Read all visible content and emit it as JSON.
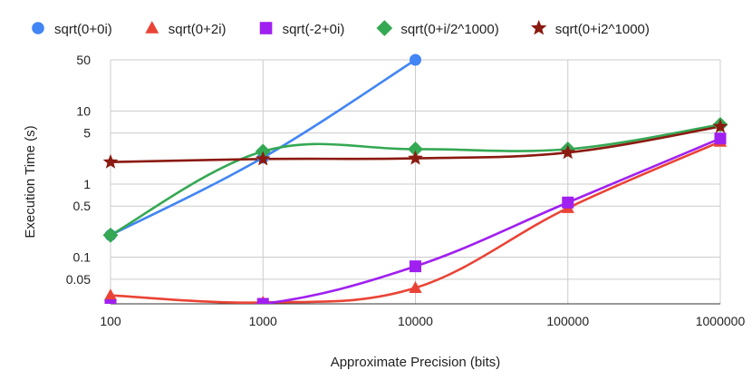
{
  "chart_data": {
    "type": "line",
    "title": "",
    "xlabel": "Approximate Precision (bits)",
    "ylabel": "Execution Time (s)",
    "x_scale": "log",
    "y_scale": "log",
    "categories": [
      "100",
      "1000",
      "10000",
      "100000",
      "1000000"
    ],
    "x": [
      100,
      1000,
      10000,
      100000,
      1000000
    ],
    "ylim": [
      0.023,
      50
    ],
    "y_ticks": [
      50,
      10,
      5,
      1,
      0.5,
      0.1,
      0.05
    ],
    "y_tick_labels": [
      "50",
      "10",
      "5",
      "1",
      "0.5",
      "0.1",
      "0.05"
    ],
    "grid": true,
    "legend": "top",
    "series": [
      {
        "name": "sqrt(0+0i)",
        "color": "#4285f4",
        "marker": "circle",
        "x": [
          100,
          1000,
          10000
        ],
        "values": [
          0.2,
          2.3,
          50
        ]
      },
      {
        "name": "sqrt(0+2i)",
        "color": "#ea4335",
        "marker": "triangle",
        "x": [
          100,
          1000,
          10000,
          100000,
          1000000
        ],
        "values": [
          0.03,
          0.024,
          0.038,
          0.47,
          3.8
        ]
      },
      {
        "name": "sqrt(-2+0i)",
        "color": "#a020f0",
        "marker": "square",
        "x": [
          100,
          1000,
          10000,
          100000,
          1000000
        ],
        "values": [
          0.022,
          0.023,
          0.075,
          0.56,
          4.2
        ]
      },
      {
        "name": "sqrt(0+i/2^1000)",
        "color": "#34a853",
        "marker": "diamond",
        "x": [
          100,
          1000,
          10000,
          100000,
          1000000
        ],
        "values": [
          0.2,
          2.8,
          3.0,
          3.0,
          6.5
        ]
      },
      {
        "name": "sqrt(0+i2^1000)",
        "color": "#8b1a10",
        "marker": "star",
        "x": [
          100,
          1000,
          10000,
          100000,
          1000000
        ],
        "values": [
          2.0,
          2.2,
          2.25,
          2.7,
          6.1
        ]
      }
    ]
  }
}
